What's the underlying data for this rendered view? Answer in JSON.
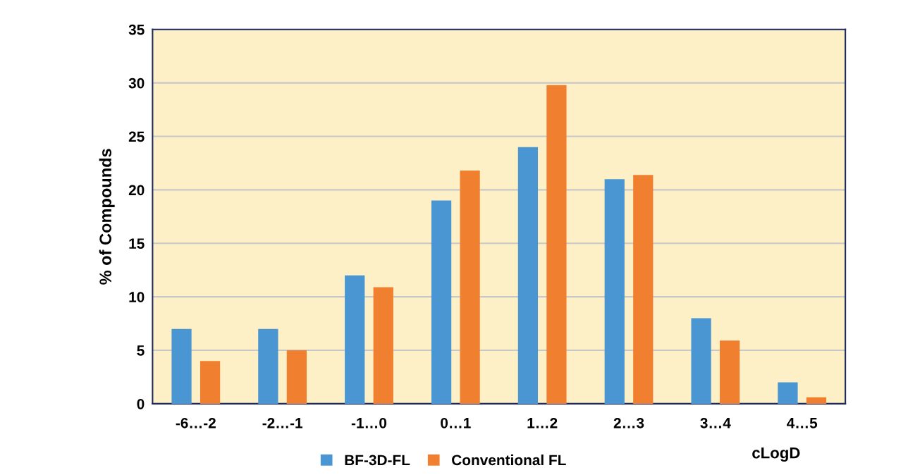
{
  "chart_data": {
    "type": "bar",
    "xlabel": "cLogD",
    "ylabel": "% of Compounds",
    "categories": [
      "-6…-2",
      "-2…-1",
      "-1…0",
      "0…1",
      "1…2",
      "2…3",
      "3…4",
      "4…5"
    ],
    "series": [
      {
        "name": "BF-3D-FL",
        "color": "#4a96d2",
        "values": [
          7,
          7,
          12,
          19,
          24,
          21,
          8,
          2
        ]
      },
      {
        "name": "Conventional FL",
        "color": "#f08030",
        "values": [
          4,
          5,
          10.9,
          21.8,
          29.8,
          21.4,
          5.9,
          0.6
        ]
      }
    ],
    "ylim": [
      0,
      35
    ],
    "yticks": [
      0,
      5,
      10,
      15,
      20,
      25,
      30,
      35
    ],
    "grid": "y",
    "legend": "bottom"
  }
}
